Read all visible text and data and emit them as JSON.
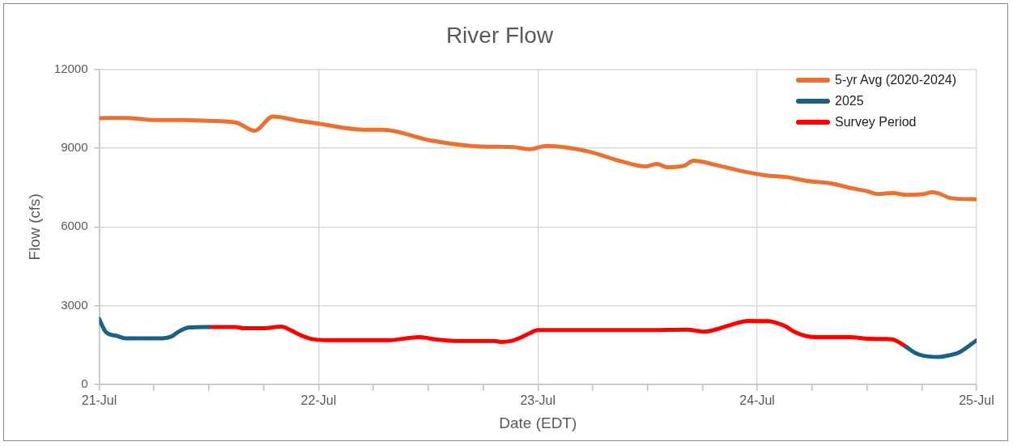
{
  "chart_data": {
    "type": "line",
    "title": "River Flow",
    "xlabel": "Date (EDT)",
    "ylabel": "Flow (cfs)",
    "xlim": [
      "--07-21",
      "--07-25"
    ],
    "xticks": [
      {
        "value": "--07-21",
        "label": "21-Jul"
      },
      {
        "value": "--07-21T06:00",
        "label": null
      },
      {
        "value": "--07-21T12:00",
        "label": null
      },
      {
        "value": "--07-21T18:00",
        "label": null
      },
      {
        "value": "--07-22",
        "label": "22-Jul"
      },
      {
        "value": "--07-22T06:00",
        "label": null
      },
      {
        "value": "--07-22T12:00",
        "label": null
      },
      {
        "value": "--07-22T18:00",
        "label": null
      },
      {
        "value": "--07-23",
        "label": "23-Jul"
      },
      {
        "value": "--07-23T06:00",
        "label": null
      },
      {
        "value": "--07-23T12:00",
        "label": null
      },
      {
        "value": "--07-23T18:00",
        "label": null
      },
      {
        "value": "--07-24",
        "label": "24-Jul"
      },
      {
        "value": "--07-24T06:00",
        "label": null
      },
      {
        "value": "--07-24T12:00",
        "label": null
      },
      {
        "value": "--07-24T18:00",
        "label": null
      },
      {
        "value": "--07-25",
        "label": "25-Jul"
      }
    ],
    "ylim": [
      0,
      12000
    ],
    "yticks": [
      0,
      3000,
      6000,
      9000,
      12000
    ],
    "grid": true,
    "legend": "top right",
    "marker": "none",
    "line_style": "solid",
    "series": [
      {
        "name": "5-yr Avg (2020-2024)",
        "color": "#e97132",
        "x": [
          "--07-21T00:00",
          "--07-21T03:00",
          "--07-21T06:00",
          "--07-21T09:00",
          "--07-21T12:00",
          "--07-21T15:00",
          "--07-21T17:00",
          "--07-21T19:00",
          "--07-21T22:00",
          "--07-22T00:00",
          "--07-22T05:00",
          "--07-22T07:00",
          "--07-22T12:15",
          "--07-22T17:45",
          "--07-22T21:20",
          "--07-22T23:00",
          "--07-23T01:00",
          "--07-23T05:30",
          "--07-23T09:00",
          "--07-23T11:45",
          "--07-23T13:00",
          "--07-23T14:10",
          "--07-23T16:05",
          "--07-23T17:00",
          "--07-23T19:40",
          "--07-23T22:05",
          "--07-24T01:12",
          "--07-24T03:07",
          "--07-24T05:17",
          "--07-24T08:10",
          "--07-24T10:05",
          "--07-24T12:00",
          "--07-24T13:12",
          "--07-24T14:53",
          "--07-24T16:19",
          "--07-24T18:00",
          "--07-24T19:12",
          "--07-24T19:55",
          "--07-24T21:07",
          "--07-25T00:00"
        ],
        "values": [
          10140,
          10150,
          10070,
          10070,
          10040,
          9970,
          9660,
          10200,
          10030,
          9930,
          9700,
          9700,
          9290,
          9060,
          9040,
          8960,
          9080,
          8870,
          8510,
          8300,
          8400,
          8270,
          8340,
          8520,
          8340,
          8140,
          7950,
          7900,
          7760,
          7650,
          7490,
          7360,
          7250,
          7290,
          7220,
          7240,
          7320,
          7270,
          7100,
          7050
        ]
      },
      {
        "name": "2025",
        "color": "#1b6184",
        "x": [
          "--07-21T00:00",
          "--07-21T00:43",
          "--07-21T01:55",
          "--07-21T02:53",
          "--07-21T06:58",
          "--07-21T07:55",
          "--07-21T08:38",
          "--07-21T09:50",
          "--07-21T12:00",
          null,
          "--07-24T16:19",
          "--07-24T17:17",
          "--07-24T18:14",
          "--07-24T19:55",
          "--07-24T21:07",
          "--07-24T22:05",
          "--07-25T00:00"
        ],
        "values": [
          2490,
          2000,
          1850,
          1760,
          1760,
          1830,
          2000,
          2170,
          2190,
          null,
          1430,
          1200,
          1090,
          1050,
          1120,
          1220,
          1680
        ]
      },
      {
        "name": "Survey Period",
        "color": "#ff0000",
        "x": [
          "--07-21T12:00",
          "--07-21T14:53",
          "--07-21T15:50",
          "--07-21T18:00",
          "--07-21T19:55",
          "--07-21T20:53",
          "--07-21T22:05",
          "--07-21T23:17",
          "--07-22T00:58",
          "--07-22T07:55",
          "--07-22T09:36",
          "--07-22T11:02",
          "--07-22T12:58",
          "--07-22T14:53",
          "--07-22T19:12",
          "--07-22T19:55",
          "--07-22T21:07",
          "--07-22T22:05",
          "--07-22T23:02",
          "--07-23T00:00",
          "--07-23T11:46",
          "--07-23T16:19",
          "--07-23T18:14",
          "--07-23T19:12",
          "--07-23T21:07",
          "--07-23T23:02",
          "--07-24T01:12",
          "--07-24T02:10",
          "--07-24T03:07",
          "--07-24T04:05",
          "--07-24T05:17",
          "--07-24T06:58",
          "--07-24T10:05",
          "--07-24T12:14",
          "--07-24T14:10",
          "--07-24T15:07",
          "--07-24T16:19"
        ],
        "values": [
          2190,
          2190,
          2140,
          2140,
          2200,
          2080,
          1870,
          1730,
          1690,
          1690,
          1760,
          1800,
          1710,
          1660,
          1660,
          1620,
          1660,
          1780,
          1940,
          2070,
          2070,
          2090,
          2010,
          2070,
          2270,
          2420,
          2410,
          2340,
          2210,
          2000,
          1850,
          1800,
          1800,
          1740,
          1730,
          1680,
          1430
        ]
      }
    ]
  }
}
